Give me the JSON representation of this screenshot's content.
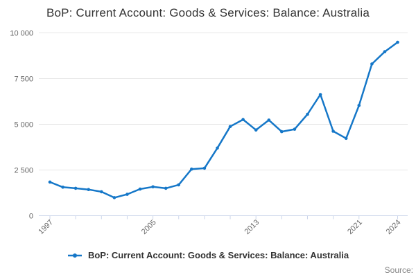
{
  "title": "BoP: Current Account: Goods & Services: Balance: Australia",
  "legend": {
    "label": "BoP: Current Account: Goods & Services: Balance: Australia"
  },
  "credits": {
    "text": "Source:"
  },
  "colors": {
    "line": "#1577c8",
    "grid": "#e6e6e6",
    "axis": "#ccd6eb",
    "tick_label": "#666666",
    "title_text": "#333333",
    "legend_text": "#333333",
    "credits_text": "#888888"
  },
  "chart_data": {
    "type": "line",
    "title": "BoP: Current Account: Goods & Services: Balance: Australia",
    "xlabel": "",
    "ylabel": "",
    "x": [
      1997,
      1998,
      1999,
      2000,
      2001,
      2002,
      2003,
      2004,
      2005,
      2006,
      2007,
      2008,
      2009,
      2010,
      2011,
      2012,
      2013,
      2014,
      2015,
      2016,
      2017,
      2018,
      2019,
      2020,
      2021,
      2022,
      2023,
      2024
    ],
    "series": [
      {
        "name": "BoP: Current Account: Goods & Services: Balance: Australia",
        "values": [
          1840,
          1560,
          1500,
          1430,
          1310,
          990,
          1170,
          1460,
          1580,
          1500,
          1690,
          2550,
          2600,
          3700,
          4880,
          5260,
          4690,
          5230,
          4600,
          4730,
          5550,
          6630,
          4620,
          4230,
          6030,
          8300,
          8970,
          9490
        ]
      }
    ],
    "ylim": [
      0,
      10000
    ],
    "y_ticks": [
      0,
      2500,
      5000,
      7500,
      10000
    ],
    "y_tick_labels": [
      "0",
      "2 500",
      "5 000",
      "7 500",
      "10 000"
    ],
    "x_tick_years": [
      1997,
      1999,
      2001,
      2003,
      2005,
      2007,
      2009,
      2011,
      2013,
      2015,
      2017,
      2019,
      2021,
      2024
    ],
    "x_label_years": [
      1997,
      2005,
      2013,
      2021,
      2024
    ],
    "grid": "horizontal-only",
    "legend_position": "bottom",
    "marker": "dot"
  }
}
